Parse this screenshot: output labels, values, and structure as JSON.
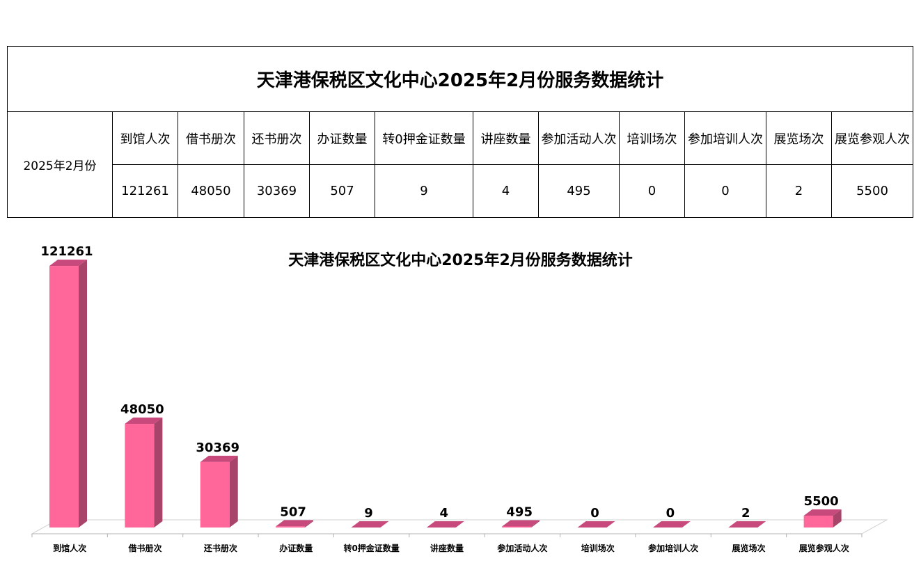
{
  "table": {
    "title": "天津港保税区文化中心2025年2月份服务数据统计",
    "period": "2025年2月份",
    "headers": [
      "到馆人次",
      "借书册次",
      "还书册次",
      "办证数量",
      "转0押金证数量",
      "讲座数量",
      "参加活动人次",
      "培训场次",
      "参加培训人次",
      "展览场次",
      "展览参观人次"
    ],
    "values": [
      "121261",
      "48050",
      "30369",
      "507",
      "9",
      "4",
      "495",
      "0",
      "0",
      "2",
      "5500"
    ]
  },
  "chart_data": {
    "type": "bar",
    "title": "天津港保税区文化中心2025年2月份服务数据统计",
    "categories": [
      "到馆人次",
      "借书册次",
      "还书册次",
      "办证数量",
      "转0押金证数量",
      "讲座数量",
      "参加活动人次",
      "培训场次",
      "参加培训人次",
      "展览场次",
      "展览参观人次"
    ],
    "values": [
      121261,
      48050,
      30369,
      507,
      9,
      4,
      495,
      0,
      0,
      2,
      5500
    ],
    "xlabel": "",
    "ylabel": "",
    "ylim": [
      0,
      130000
    ],
    "style": "3d-column",
    "grid": false,
    "legend": "none",
    "colors": {
      "front": "#ff6699",
      "side": "#a8436a",
      "top": "#c84a7c",
      "floor": "#d0d0d0"
    }
  }
}
